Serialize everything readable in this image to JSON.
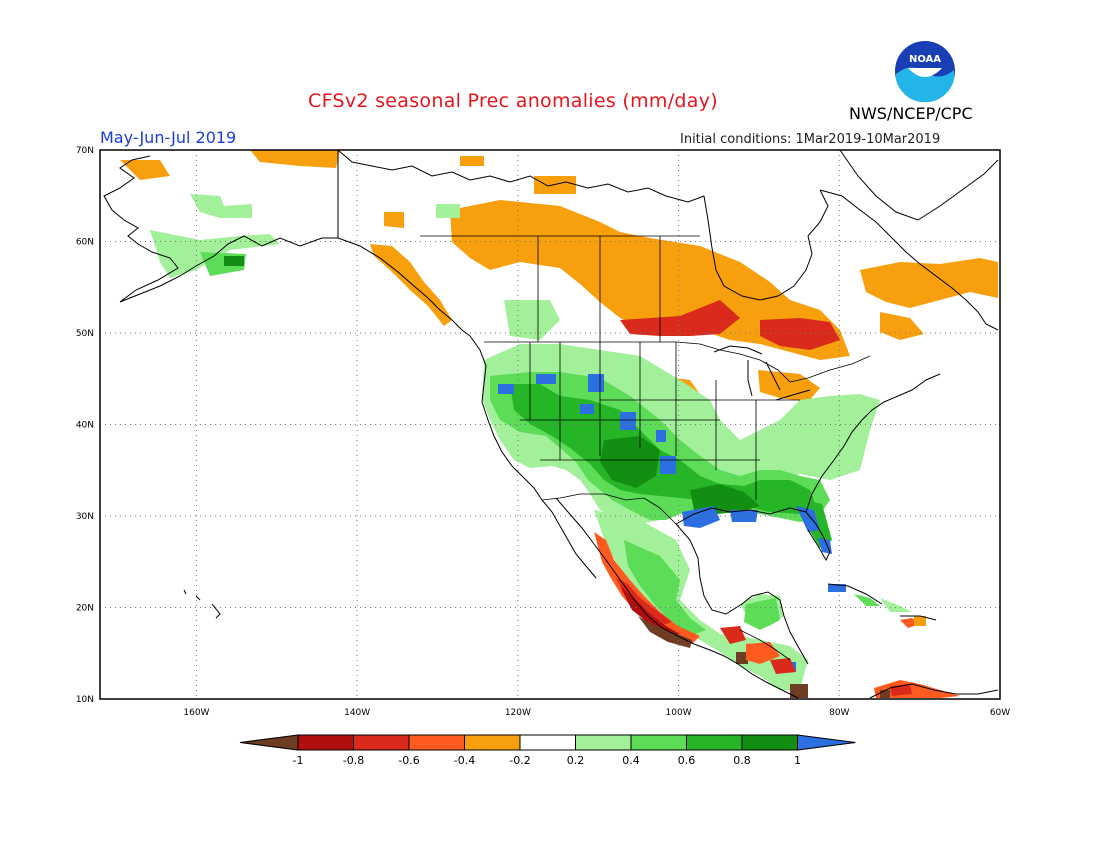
{
  "header": {
    "title": "CFSv2 seasonal Prec anomalies (mm/day)",
    "season": "May-Jun-Jul 2019",
    "initial_conditions": "Initial conditions: 1Mar2019-10Mar2019",
    "agency": "NWS/NCEP/CPC",
    "logo_text": "NOAA"
  },
  "map": {
    "lat_labels": [
      "70N",
      "60N",
      "50N",
      "40N",
      "30N",
      "20N",
      "10N"
    ],
    "lon_labels": [
      "160W",
      "140W",
      "120W",
      "100W",
      "80W",
      "60W"
    ],
    "extent": {
      "lon_min": -172,
      "lon_max": -60,
      "lat_min": 10,
      "lat_max": 70
    }
  },
  "colorbar": {
    "labels": [
      "-1",
      "-0.8",
      "-0.6",
      "-0.4",
      "-0.2",
      "0.2",
      "0.4",
      "0.6",
      "0.8",
      "1"
    ],
    "colors": [
      "#6e3d23",
      "#b10f0f",
      "#d92a1c",
      "#ff5a1f",
      "#f89f0e",
      "#ffffff",
      "#a2f09a",
      "#5cdc57",
      "#26b526",
      "#128f12",
      "#2b6fe0"
    ]
  },
  "colors": {
    "brown": "#6e3d23",
    "darkred": "#b10f0f",
    "red": "#d92a1c",
    "orangered": "#ff5a1f",
    "orange": "#f89f0e",
    "lightgreen": "#a2f09a",
    "green": "#5cdc57",
    "medgreen": "#26b526",
    "darkgreen": "#128f12",
    "blue": "#2b6fe0"
  }
}
